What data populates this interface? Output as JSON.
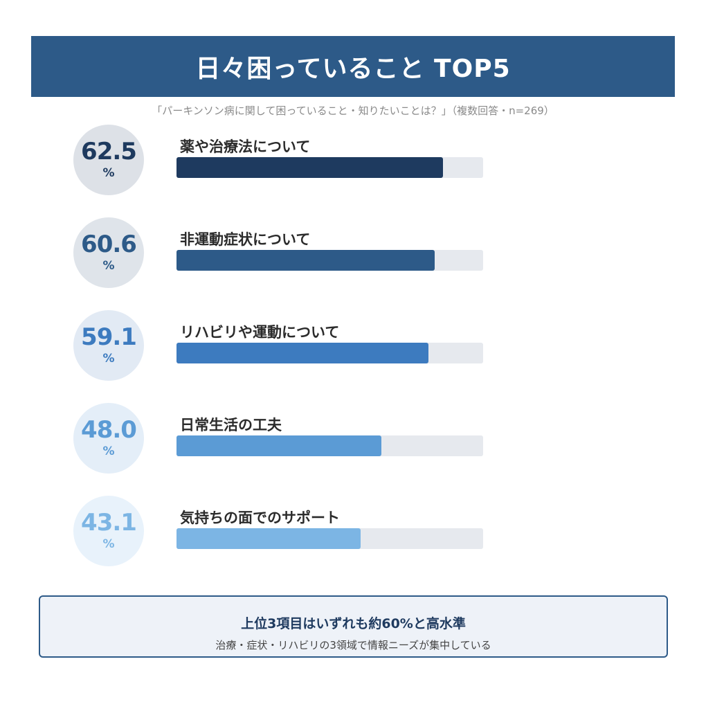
{
  "header": {
    "title": "日々困っていること TOP5"
  },
  "subtitle": "「パーキンソン病に関して困っていること・知りたいことは？」（複数回答・n=269）",
  "items": [
    {
      "rank": 1,
      "value": "62.5",
      "unit": "%",
      "label": "薬や治療法について",
      "num": 62.5,
      "bar_color": "#1e3a5f",
      "circle_bg": "#dde1e7",
      "text_color": "#1e3a5f"
    },
    {
      "rank": 2,
      "value": "60.6",
      "unit": "%",
      "label": "非運動症状について",
      "num": 60.6,
      "bar_color": "#2d5a88",
      "circle_bg": "#dfe4ea",
      "text_color": "#2d5a88"
    },
    {
      "rank": 3,
      "value": "59.1",
      "unit": "%",
      "label": "リハビリや運動について",
      "num": 59.1,
      "bar_color": "#3d7bbf",
      "circle_bg": "#e2eaf4",
      "text_color": "#3d7bbf"
    },
    {
      "rank": 4,
      "value": "48.0",
      "unit": "%",
      "label": "日常生活の工夫",
      "num": 48.0,
      "bar_color": "#5b9bd5",
      "circle_bg": "#e4eef8",
      "text_color": "#5b9bd5"
    },
    {
      "rank": 5,
      "value": "43.1",
      "unit": "%",
      "label": "気持ちの面でのサポート",
      "num": 43.1,
      "bar_color": "#7cb5e4",
      "circle_bg": "#e8f2fb",
      "text_color": "#7cb5e4"
    }
  ],
  "summary": {
    "title": "上位3項目はいずれも約60%と高水準",
    "text": "治療・症状・リハビリの3領域で情報ニーズが集中している"
  },
  "chart_data": {
    "type": "bar",
    "orientation": "horizontal",
    "title": "日々困っていること TOP5",
    "subtitle": "「パーキンソン病に関して困っていること・知りたいことは？」（複数回答・n=269）",
    "categories": [
      "薬や治療法について",
      "非運動症状について",
      "リハビリや運動について",
      "日常生活の工夫",
      "気持ちの面でのサポート"
    ],
    "values": [
      62.5,
      60.6,
      59.1,
      48.0,
      43.1
    ],
    "unit": "%",
    "xlabel": "",
    "ylabel": "",
    "grid": false,
    "legend": "none",
    "annotation": "上位3項目はいずれも約60%と高水準 / 治療・症状・リハビリの3領域で情報ニーズが集中している"
  }
}
